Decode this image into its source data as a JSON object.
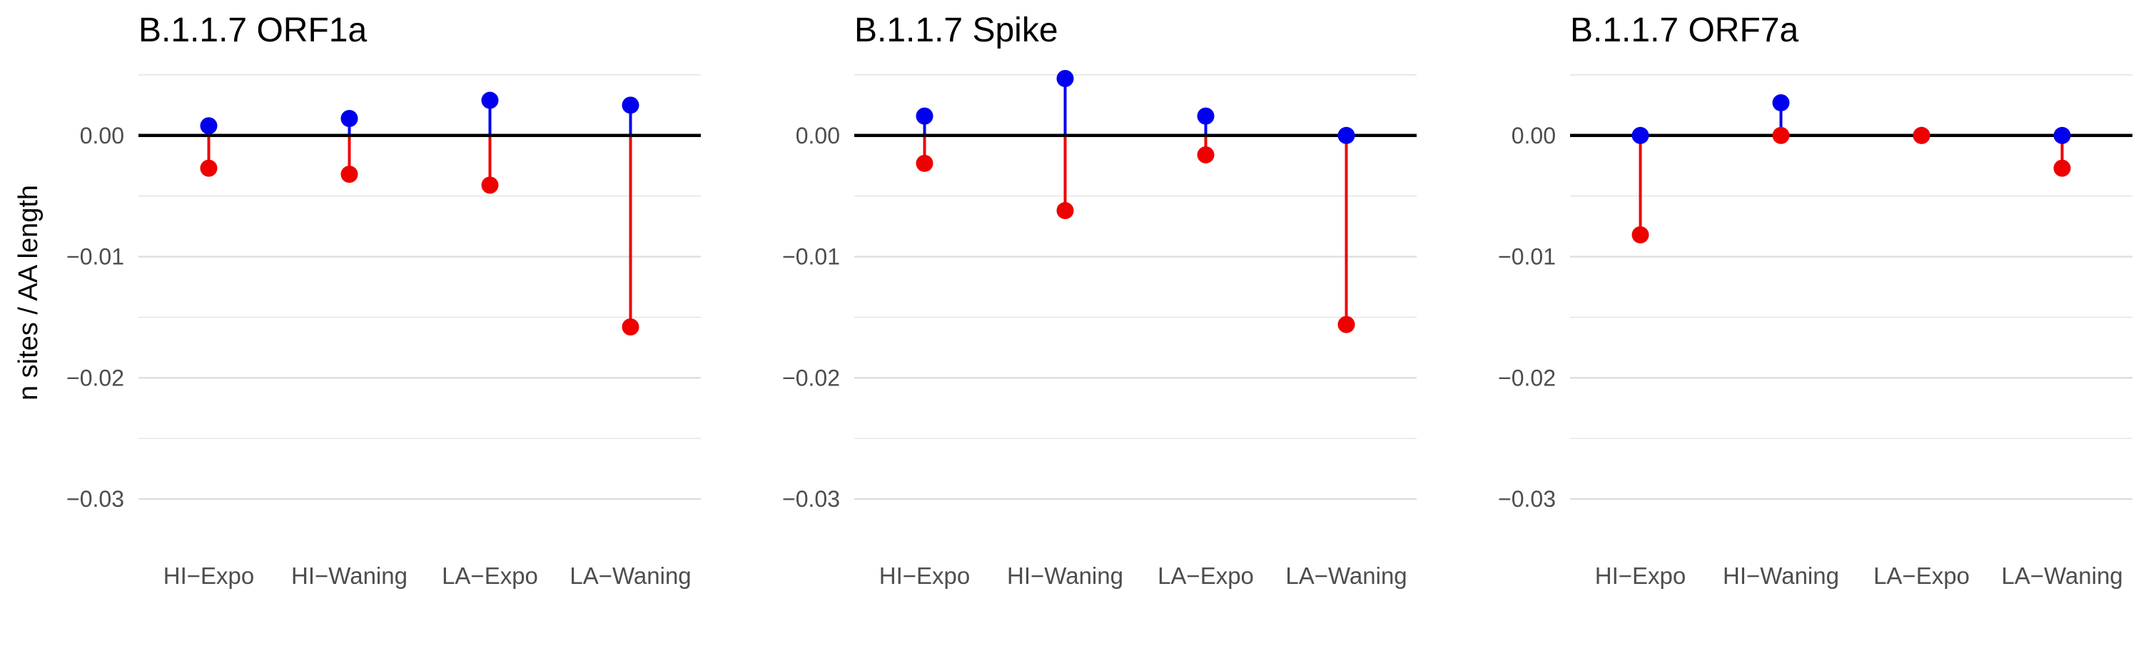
{
  "figure": {
    "ylabel": "n sites / AA length",
    "y_ticks": [
      "0.00",
      "−0.01",
      "−0.02",
      "−0.03"
    ],
    "colors": {
      "positive": "#0000EE",
      "negative": "#EE0000",
      "zero_line": "#000000",
      "grid": "#DEDEDE",
      "text": "#4D4D4D"
    }
  },
  "chart_data": [
    {
      "type": "lollipop",
      "title": "B.1.1.7 ORF1a",
      "categories": [
        "HI−Expo",
        "HI−Waning",
        "LA−Expo",
        "LA−Waning"
      ],
      "series": [
        {
          "color": "blue",
          "values": [
            0.0008,
            0.0014,
            0.0029,
            0.0025
          ]
        },
        {
          "color": "red",
          "values": [
            -0.0027,
            -0.0032,
            -0.0041,
            -0.0158
          ]
        }
      ],
      "ylim": [
        -0.033,
        0.0047
      ],
      "grid": true
    },
    {
      "type": "lollipop",
      "title": "B.1.1.7 Spike",
      "categories": [
        "HI−Expo",
        "HI−Waning",
        "LA−Expo",
        "LA−Waning"
      ],
      "series": [
        {
          "color": "blue",
          "values": [
            0.0016,
            0.0047,
            0.0016,
            0.0
          ]
        },
        {
          "color": "red",
          "values": [
            -0.0023,
            -0.0062,
            -0.0016,
            -0.0156
          ]
        }
      ],
      "ylim": [
        -0.033,
        0.0047
      ],
      "grid": true
    },
    {
      "type": "lollipop",
      "title": "B.1.1.7 ORF7a",
      "categories": [
        "HI−Expo",
        "HI−Waning",
        "LA−Expo",
        "LA−Waning"
      ],
      "series": [
        {
          "color": "blue",
          "values": [
            0.0,
            0.0027,
            0.0,
            0.0
          ]
        },
        {
          "color": "red",
          "values": [
            -0.0082,
            0.0,
            0.0,
            -0.0027
          ]
        }
      ],
      "ylim": [
        -0.033,
        0.0047
      ],
      "grid": true
    }
  ]
}
